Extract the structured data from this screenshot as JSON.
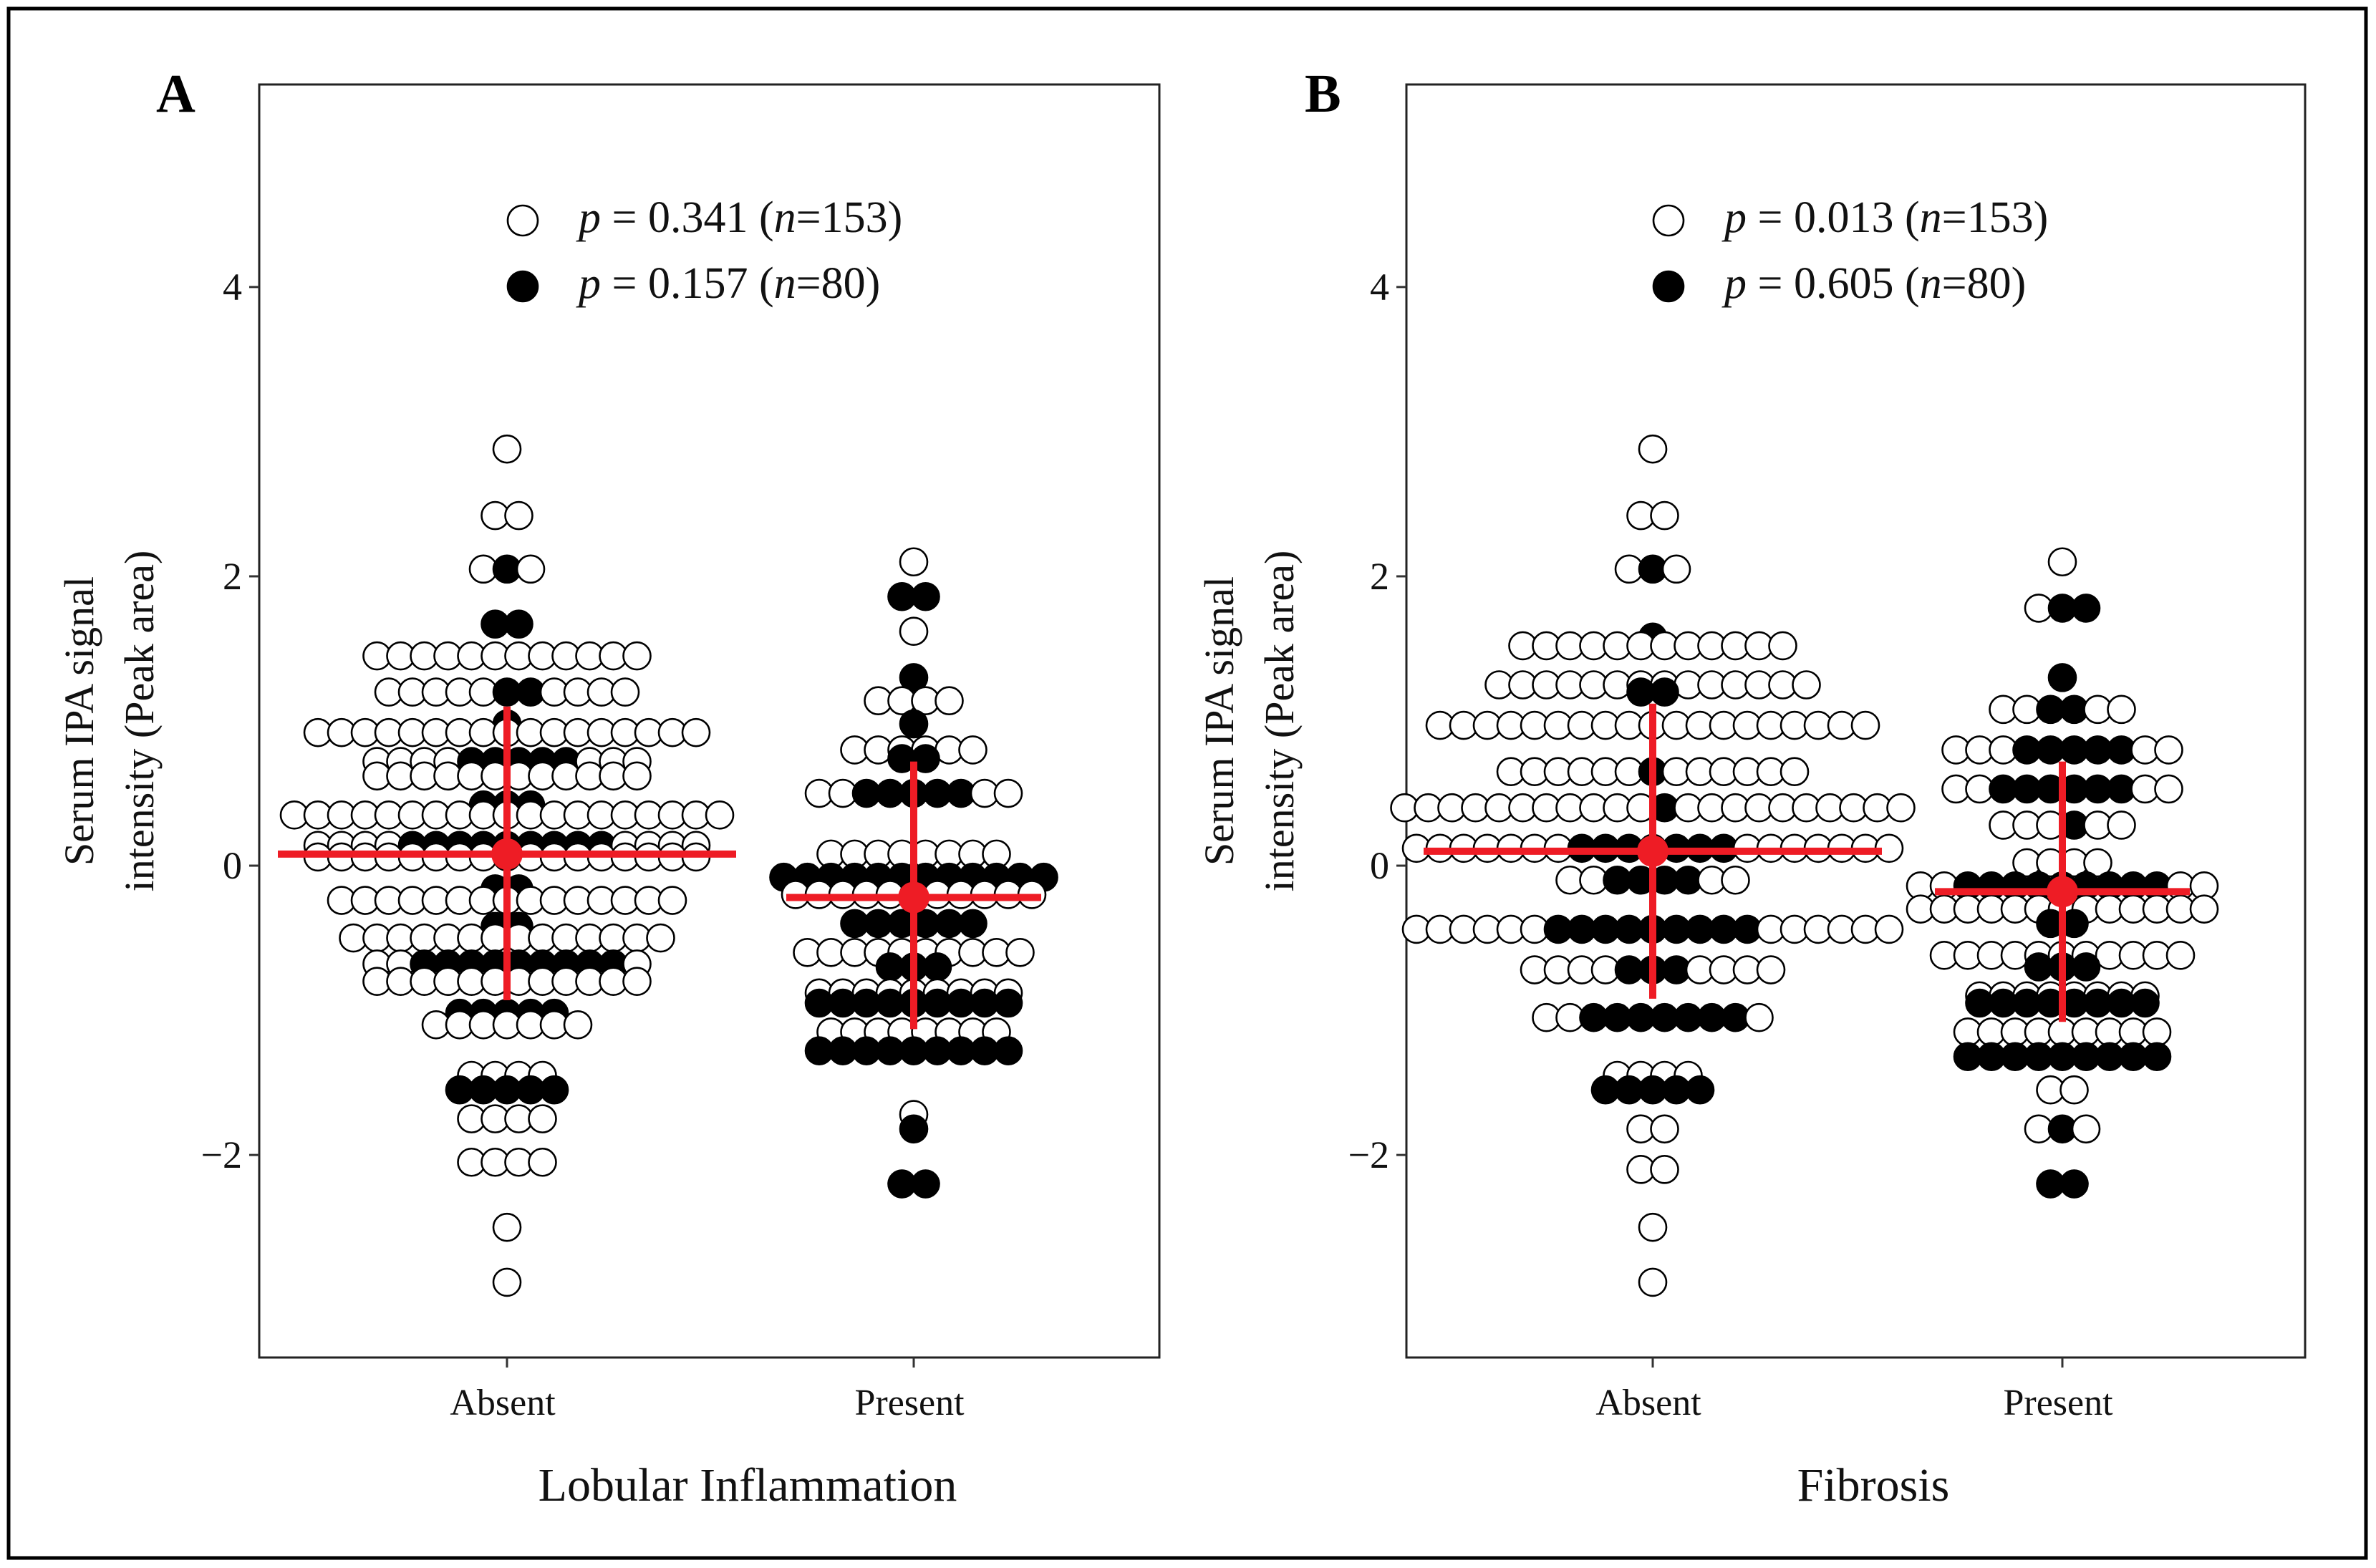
{
  "chart_data": [
    {
      "type": "scatter",
      "subtype": "dot-plot-beeswarm",
      "panel": "A",
      "xlabel": "Lobular Inflammation",
      "ylabel_line1": "Serum IPA signal",
      "ylabel_line2": "intensity (Peak area)",
      "ylim": [
        -3.4,
        5.4
      ],
      "yticks": [
        -2,
        0,
        2,
        4
      ],
      "ytick_labels": [
        "−2",
        "0",
        "2",
        "4"
      ],
      "categories": [
        "Absent",
        "Present"
      ],
      "legend": [
        {
          "marker": "open",
          "p_prefix": "p",
          "text": " = 0.341 (",
          "n_prefix": "n",
          "n_text": "=153)"
        },
        {
          "marker": "filled",
          "p_prefix": "p",
          "text": " = 0.157 (",
          "n_prefix": "n",
          "n_text": "=80)"
        }
      ],
      "groups": [
        {
          "category": "Absent",
          "mean": 0.08,
          "error_low": -0.93,
          "error_high": 1.1,
          "rows": [
            {
              "y": 2.88,
              "open": 1,
              "filled": 0
            },
            {
              "y": 2.42,
              "open": 2,
              "filled": 0
            },
            {
              "y": 2.05,
              "open": 2,
              "filled": 1
            },
            {
              "y": 1.67,
              "open": 0,
              "filled": 2
            },
            {
              "y": 1.45,
              "open": 12,
              "filled": 0
            },
            {
              "y": 1.2,
              "open": 9,
              "filled": 2
            },
            {
              "y": 0.98,
              "open": 0,
              "filled": 1
            },
            {
              "y": 0.92,
              "open": 17,
              "filled": 0
            },
            {
              "y": 0.72,
              "open": 7,
              "filled": 5
            },
            {
              "y": 0.62,
              "open": 12,
              "filled": 0
            },
            {
              "y": 0.42,
              "open": 0,
              "filled": 3
            },
            {
              "y": 0.35,
              "open": 19,
              "filled": 0
            },
            {
              "y": 0.14,
              "open": 8,
              "filled": 9
            },
            {
              "y": 0.06,
              "open": 17,
              "filled": 0
            },
            {
              "y": -0.16,
              "open": 0,
              "filled": 2
            },
            {
              "y": -0.24,
              "open": 15,
              "filled": 0
            },
            {
              "y": -0.42,
              "open": 0,
              "filled": 2
            },
            {
              "y": -0.5,
              "open": 14,
              "filled": 0
            },
            {
              "y": -0.68,
              "open": 3,
              "filled": 9
            },
            {
              "y": -0.8,
              "open": 12,
              "filled": 0
            },
            {
              "y": -1.02,
              "open": 0,
              "filled": 5
            },
            {
              "y": -1.1,
              "open": 7,
              "filled": 0
            },
            {
              "y": -1.45,
              "open": 4,
              "filled": 0
            },
            {
              "y": -1.55,
              "open": 0,
              "filled": 5
            },
            {
              "y": -1.75,
              "open": 4,
              "filled": 0
            },
            {
              "y": -2.05,
              "open": 4,
              "filled": 0
            },
            {
              "y": -2.5,
              "open": 1,
              "filled": 0
            },
            {
              "y": -2.88,
              "open": 1,
              "filled": 0
            }
          ]
        },
        {
          "category": "Present",
          "mean": -0.22,
          "error_low": -1.13,
          "error_high": 0.72,
          "rows": [
            {
              "y": 2.1,
              "open": 1,
              "filled": 0
            },
            {
              "y": 1.86,
              "open": 0,
              "filled": 2
            },
            {
              "y": 1.62,
              "open": 1,
              "filled": 0
            },
            {
              "y": 1.3,
              "open": 0,
              "filled": 1
            },
            {
              "y": 1.14,
              "open": 4,
              "filled": 0
            },
            {
              "y": 0.98,
              "open": 0,
              "filled": 1
            },
            {
              "y": 0.8,
              "open": 6,
              "filled": 0
            },
            {
              "y": 0.74,
              "open": 0,
              "filled": 2
            },
            {
              "y": 0.5,
              "open": 4,
              "filled": 5
            },
            {
              "y": 0.08,
              "open": 8,
              "filled": 0
            },
            {
              "y": -0.08,
              "open": 0,
              "filled": 12
            },
            {
              "y": -0.2,
              "open": 11,
              "filled": 0
            },
            {
              "y": -0.4,
              "open": 0,
              "filled": 6
            },
            {
              "y": -0.6,
              "open": 10,
              "filled": 0
            },
            {
              "y": -0.7,
              "open": 0,
              "filled": 3
            },
            {
              "y": -0.88,
              "open": 9,
              "filled": 0
            },
            {
              "y": -0.95,
              "open": 0,
              "filled": 9
            },
            {
              "y": -1.15,
              "open": 8,
              "filled": 0
            },
            {
              "y": -1.28,
              "open": 0,
              "filled": 9
            },
            {
              "y": -1.72,
              "open": 1,
              "filled": 0
            },
            {
              "y": -1.82,
              "open": 0,
              "filled": 1
            },
            {
              "y": -2.2,
              "open": 0,
              "filled": 2
            }
          ]
        }
      ]
    },
    {
      "type": "scatter",
      "subtype": "dot-plot-beeswarm",
      "panel": "B",
      "xlabel": "Fibrosis",
      "ylabel_line1": "Serum IPA signal",
      "ylabel_line2": "intensity (Peak area)",
      "ylim": [
        -3.4,
        5.4
      ],
      "yticks": [
        -2,
        0,
        2,
        4
      ],
      "ytick_labels": [
        "−2",
        "0",
        "2",
        "4"
      ],
      "categories": [
        "Absent",
        "Present"
      ],
      "legend": [
        {
          "marker": "open",
          "p_prefix": "p",
          "text": " = 0.013 (",
          "n_prefix": "n",
          "n_text": "=153)"
        },
        {
          "marker": "filled",
          "p_prefix": "p",
          "text": " = 0.605 (",
          "n_prefix": "n",
          "n_text": "=80)"
        }
      ],
      "groups": [
        {
          "category": "Absent",
          "mean": 0.1,
          "error_low": -0.92,
          "error_high": 1.12,
          "rows": [
            {
              "y": 2.88,
              "open": 1,
              "filled": 0
            },
            {
              "y": 2.42,
              "open": 2,
              "filled": 0
            },
            {
              "y": 2.05,
              "open": 2,
              "filled": 1
            },
            {
              "y": 1.58,
              "open": 0,
              "filled": 1
            },
            {
              "y": 1.52,
              "open": 12,
              "filled": 0
            },
            {
              "y": 1.25,
              "open": 14,
              "filled": 0
            },
            {
              "y": 1.2,
              "open": 0,
              "filled": 2
            },
            {
              "y": 0.97,
              "open": 19,
              "filled": 0
            },
            {
              "y": 0.65,
              "open": 12,
              "filled": 1
            },
            {
              "y": 0.4,
              "open": 21,
              "filled": 1
            },
            {
              "y": 0.12,
              "open": 14,
              "filled": 7
            },
            {
              "y": -0.1,
              "open": 4,
              "filled": 4
            },
            {
              "y": -0.44,
              "open": 12,
              "filled": 9
            },
            {
              "y": -0.72,
              "open": 8,
              "filled": 3
            },
            {
              "y": -1.05,
              "open": 3,
              "filled": 7
            },
            {
              "y": -1.45,
              "open": 4,
              "filled": 0
            },
            {
              "y": -1.55,
              "open": 0,
              "filled": 5
            },
            {
              "y": -1.82,
              "open": 2,
              "filled": 0
            },
            {
              "y": -2.1,
              "open": 2,
              "filled": 0
            },
            {
              "y": -2.5,
              "open": 1,
              "filled": 0
            },
            {
              "y": -2.88,
              "open": 1,
              "filled": 0
            }
          ]
        },
        {
          "category": "Present",
          "mean": -0.18,
          "error_low": -1.08,
          "error_high": 0.72,
          "rows": [
            {
              "y": 2.1,
              "open": 1,
              "filled": 0
            },
            {
              "y": 1.78,
              "open": 1,
              "filled": 2
            },
            {
              "y": 1.3,
              "open": 0,
              "filled": 1
            },
            {
              "y": 1.08,
              "open": 4,
              "filled": 2
            },
            {
              "y": 0.8,
              "open": 5,
              "filled": 5
            },
            {
              "y": 0.53,
              "open": 4,
              "filled": 6
            },
            {
              "y": 0.28,
              "open": 5,
              "filled": 1
            },
            {
              "y": 0.02,
              "open": 4,
              "filled": 0
            },
            {
              "y": -0.14,
              "open": 4,
              "filled": 9
            },
            {
              "y": -0.3,
              "open": 13,
              "filled": 0
            },
            {
              "y": -0.4,
              "open": 0,
              "filled": 2
            },
            {
              "y": -0.62,
              "open": 11,
              "filled": 0
            },
            {
              "y": -0.7,
              "open": 0,
              "filled": 3
            },
            {
              "y": -0.9,
              "open": 8,
              "filled": 0
            },
            {
              "y": -0.95,
              "open": 0,
              "filled": 8
            },
            {
              "y": -1.15,
              "open": 9,
              "filled": 0
            },
            {
              "y": -1.32,
              "open": 0,
              "filled": 9
            },
            {
              "y": -1.55,
              "open": 2,
              "filled": 0
            },
            {
              "y": -1.82,
              "open": 2,
              "filled": 1
            },
            {
              "y": -2.2,
              "open": 0,
              "filled": 2
            }
          ]
        }
      ]
    }
  ]
}
